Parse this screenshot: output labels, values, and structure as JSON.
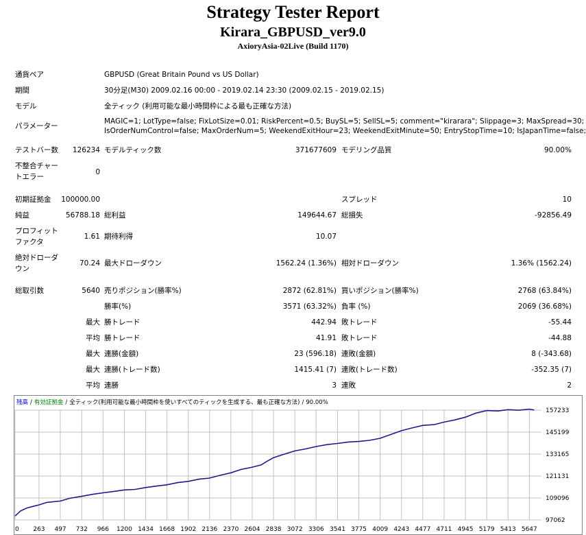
{
  "header": {
    "title": "Strategy Tester Report",
    "subtitle": "Kirara_GBPUSD_ver9.0",
    "build": "AxioryAsia-02Live (Build 1170)"
  },
  "settings": {
    "symbol_label": "通貨ペア",
    "symbol_value": "GBPUSD (Great Britain Pound vs US Dollar)",
    "period_label": "期間",
    "period_value": "30分足(M30) 2009.02.16 00:00 - 2019.02.14 23:30 (2009.02.15 - 2019.02.15)",
    "model_label": "モデル",
    "model_value": "全ティック (利用可能な最小時間枠による最も正確な方法)",
    "params_label": "パラメーター",
    "params_line1": "MAGIC=1; LotType=false; FixLotSize=0.01; RiskPercent=0.5; BuySL=5; SellSL=5; comment=\"kirarara\"; Slippage=3; MaxSpread=30;",
    "params_line2": "IsOrderNumControl=false; MaxOrderNum=5; WeekendExitHour=23; WeekendExitMinute=50; EntryStopTime=10; IsJapanTime=false;"
  },
  "stats": {
    "bars_label": "テストバー数",
    "bars_value": "126234",
    "ticks_label": "モデルティック数",
    "ticks_value": "371677609",
    "quality_label": "モデリング品質",
    "quality_value": "90.00%",
    "mismatch_label_1": "不整合チャー",
    "mismatch_label_2": "トエラー",
    "mismatch_value": "0",
    "deposit_label": "初期証拠金",
    "deposit_value": "100000.00",
    "spread_label": "スプレッド",
    "spread_value": "10",
    "net_label": "純益",
    "net_value": "56788.18",
    "gross_profit_label": "総利益",
    "gross_profit_value": "149644.67",
    "gross_loss_label": "総損失",
    "gross_loss_value": "-92856.49",
    "pf_label_1": "プロフィット",
    "pf_label_2": "ファクタ",
    "pf_value": "1.61",
    "expected_label": "期待利得",
    "expected_value": "10.07",
    "abs_dd_label_1": "絶対ドローダ",
    "abs_dd_label_2": "ウン",
    "abs_dd_value": "70.24",
    "max_dd_label": "最大ドローダウン",
    "max_dd_value": "1562.24 (1.36%)",
    "rel_dd_label": "相対ドローダウン",
    "rel_dd_value": "1.36% (1562.24)",
    "trades_label": "総取引数",
    "trades_value": "5640",
    "short_label": "売りポジション(勝率%)",
    "short_value": "2872 (62.81%)",
    "long_label": "買いポジション(勝率%)",
    "long_value": "2768 (63.84%)",
    "win_label": "勝率(%)",
    "win_value": "3571 (63.32%)",
    "loss_label": "負率 (%)",
    "loss_value": "2069 (36.68%)",
    "max_word": "最大",
    "avg_word": "平均",
    "lg_win_label": "勝トレード",
    "lg_win_value": "442.94",
    "lg_loss_label": "敗トレード",
    "lg_loss_value": "-55.44",
    "avg_win_label": "勝トレード",
    "avg_win_value": "41.91",
    "avg_loss_label": "敗トレード",
    "avg_loss_value": "-44.88",
    "cw_money_label": "連勝(金額)",
    "cw_money_value": "23 (596.18)",
    "cl_money_label": "連敗(金額)",
    "cl_money_value": "8 (-343.68)",
    "cw_trades_label": "連勝(トレード数)",
    "cw_trades_value": "1415.41 (7)",
    "cl_trades_label": "連敗(トレード数)",
    "cl_trades_value": "-352.35 (7)",
    "avg_cw_label": "連勝",
    "avg_cw_value": "3",
    "avg_cl_label": "連敗",
    "avg_cl_value": "2"
  },
  "chart_data": {
    "type": "line",
    "legend": {
      "balance": "残高",
      "sep": "/",
      "equity": "有効証拠金",
      "model": "全ティック(利用可能な最小時間枠を使いすべてのティックを生成する、最も正確な方法)",
      "quality": "90.00%"
    },
    "colors": {
      "line": "#1a1a8c",
      "balance_legend": "#0000cc",
      "equity_legend": "#008000",
      "grid": "#c0c0c0"
    },
    "x_ticks": [
      "0",
      "263",
      "497",
      "732",
      "966",
      "1200",
      "1434",
      "1668",
      "1902",
      "2136",
      "2370",
      "2604",
      "2838",
      "3072",
      "3306",
      "3541",
      "3775",
      "4009",
      "4243",
      "4477",
      "4711",
      "4945",
      "5179",
      "5413",
      "5647"
    ],
    "y_ticks": [
      97062,
      109096,
      121131,
      133165,
      145199,
      157233
    ],
    "xlim": [
      0,
      5780
    ],
    "ylim": [
      97062,
      157233
    ],
    "series": [
      {
        "x": [
          0,
          60,
          130,
          200,
          263,
          350,
          497,
          600,
          732,
          850,
          966,
          1100,
          1200,
          1320,
          1434,
          1550,
          1668,
          1780,
          1902,
          2020,
          2136,
          2250,
          2370,
          2480,
          2604,
          2700,
          2760,
          2838,
          2950,
          3072,
          3190,
          3306,
          3420,
          3541,
          3660,
          3775,
          3890,
          4009,
          4120,
          4243,
          4360,
          4477,
          4600,
          4711,
          4830,
          4945,
          5060,
          5179,
          5300,
          5413,
          5530,
          5647,
          5700
        ],
        "y": [
          99200,
          102000,
          103600,
          104500,
          105300,
          106700,
          107400,
          108900,
          110000,
          111100,
          111900,
          112800,
          113500,
          113800,
          114800,
          115600,
          116300,
          117500,
          118200,
          119400,
          120000,
          121500,
          122900,
          124700,
          126000,
          127200,
          129000,
          131200,
          133000,
          134900,
          136000,
          137300,
          138300,
          139000,
          139800,
          140100,
          140700,
          141800,
          143800,
          146000,
          147500,
          148900,
          149300,
          150700,
          151900,
          153400,
          155600,
          157000,
          156800,
          157500,
          157200,
          157800,
          157300
        ]
      }
    ]
  }
}
